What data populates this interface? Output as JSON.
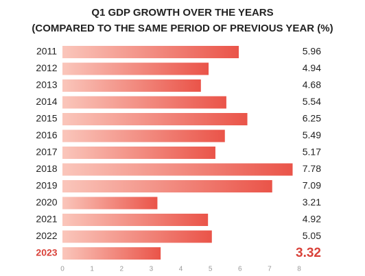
{
  "chart_data": {
    "type": "bar",
    "orientation": "horizontal",
    "title": "Q1 GDP GROWTH OVER THE YEARS",
    "subtitle": "(COMPARED TO THE SAME PERIOD OF PREVIOUS YEAR (%)",
    "categories": [
      "2011",
      "2012",
      "2013",
      "2014",
      "2015",
      "2016",
      "2017",
      "2018",
      "2019",
      "2020",
      "2021",
      "2022",
      "2023"
    ],
    "values": [
      5.96,
      4.94,
      4.68,
      5.54,
      6.25,
      5.49,
      5.17,
      7.78,
      7.09,
      3.21,
      4.92,
      5.05,
      3.32
    ],
    "gradient_colors": [
      "#fac6bb",
      "#ea5449"
    ],
    "highlight_category": "2023",
    "highlight_color": "#d9423a",
    "xlim": [
      0,
      8
    ],
    "xticks": [
      0,
      1,
      2,
      3,
      4,
      5,
      6,
      7,
      8
    ],
    "grid": false
  }
}
